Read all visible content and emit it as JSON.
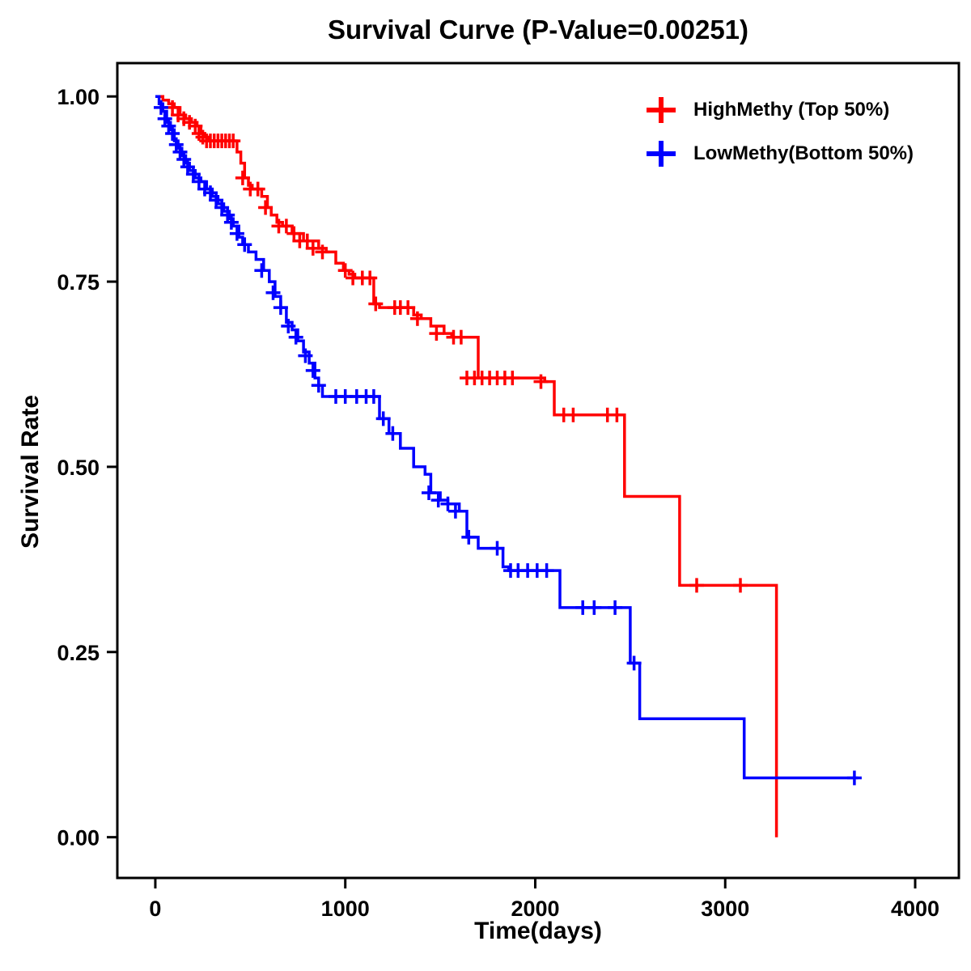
{
  "chart_data": {
    "type": "line",
    "subtype": "kaplan-meier-step",
    "title": "Survival Curve (P-Value=0.00251)",
    "p_value": "0.00251",
    "xlabel": "Time(days)",
    "ylabel": "Survival Rate",
    "xlim": [
      -200,
      4230
    ],
    "ylim": [
      -0.055,
      1.045
    ],
    "grid": false,
    "legend_position": "top-right",
    "axis_color": "#000000",
    "xticks": [
      {
        "v": 0,
        "label": "0"
      },
      {
        "v": 1000,
        "label": "1000"
      },
      {
        "v": 2000,
        "label": "2000"
      },
      {
        "v": 3000,
        "label": "3000"
      },
      {
        "v": 4000,
        "label": "4000"
      }
    ],
    "yticks": [
      {
        "v": 0.0,
        "label": "0.00"
      },
      {
        "v": 0.25,
        "label": "0.25"
      },
      {
        "v": 0.5,
        "label": "0.50"
      },
      {
        "v": 0.75,
        "label": "0.75"
      },
      {
        "v": 1.0,
        "label": "1.00"
      }
    ],
    "series": [
      {
        "name": "HighMethy (Top 50%)",
        "color": "#FF0000",
        "points": [
          [
            0,
            1.0
          ],
          [
            40,
            0.995
          ],
          [
            70,
            0.99
          ],
          [
            100,
            0.985
          ],
          [
            130,
            0.975
          ],
          [
            160,
            0.97
          ],
          [
            190,
            0.965
          ],
          [
            220,
            0.96
          ],
          [
            240,
            0.95
          ],
          [
            260,
            0.945
          ],
          [
            280,
            0.94
          ],
          [
            430,
            0.925
          ],
          [
            450,
            0.91
          ],
          [
            470,
            0.89
          ],
          [
            490,
            0.88
          ],
          [
            510,
            0.875
          ],
          [
            560,
            0.865
          ],
          [
            590,
            0.85
          ],
          [
            610,
            0.84
          ],
          [
            640,
            0.83
          ],
          [
            670,
            0.825
          ],
          [
            720,
            0.815
          ],
          [
            780,
            0.805
          ],
          [
            860,
            0.795
          ],
          [
            900,
            0.79
          ],
          [
            950,
            0.775
          ],
          [
            990,
            0.765
          ],
          [
            1020,
            0.76
          ],
          [
            1050,
            0.755
          ],
          [
            1150,
            0.72
          ],
          [
            1180,
            0.715
          ],
          [
            1360,
            0.705
          ],
          [
            1400,
            0.7
          ],
          [
            1450,
            0.69
          ],
          [
            1520,
            0.68
          ],
          [
            1560,
            0.675
          ],
          [
            1700,
            0.62
          ],
          [
            2050,
            0.615
          ],
          [
            2100,
            0.57
          ],
          [
            2470,
            0.46
          ],
          [
            2760,
            0.34
          ],
          [
            3270,
            0.0
          ]
        ],
        "censors": [
          [
            90,
            0.985
          ],
          [
            120,
            0.975
          ],
          [
            150,
            0.97
          ],
          [
            180,
            0.965
          ],
          [
            210,
            0.96
          ],
          [
            230,
            0.95
          ],
          [
            250,
            0.945
          ],
          [
            270,
            0.94
          ],
          [
            290,
            0.94
          ],
          [
            310,
            0.94
          ],
          [
            330,
            0.94
          ],
          [
            350,
            0.94
          ],
          [
            370,
            0.94
          ],
          [
            390,
            0.94
          ],
          [
            410,
            0.94
          ],
          [
            460,
            0.89
          ],
          [
            500,
            0.875
          ],
          [
            540,
            0.875
          ],
          [
            580,
            0.85
          ],
          [
            650,
            0.825
          ],
          [
            690,
            0.825
          ],
          [
            730,
            0.815
          ],
          [
            760,
            0.805
          ],
          [
            800,
            0.805
          ],
          [
            830,
            0.795
          ],
          [
            880,
            0.79
          ],
          [
            1000,
            0.765
          ],
          [
            1040,
            0.755
          ],
          [
            1090,
            0.755
          ],
          [
            1130,
            0.755
          ],
          [
            1160,
            0.72
          ],
          [
            1260,
            0.715
          ],
          [
            1290,
            0.715
          ],
          [
            1330,
            0.715
          ],
          [
            1380,
            0.7
          ],
          [
            1480,
            0.68
          ],
          [
            1570,
            0.675
          ],
          [
            1610,
            0.675
          ],
          [
            1640,
            0.62
          ],
          [
            1680,
            0.62
          ],
          [
            1720,
            0.62
          ],
          [
            1760,
            0.62
          ],
          [
            1800,
            0.62
          ],
          [
            1840,
            0.62
          ],
          [
            1880,
            0.62
          ],
          [
            2030,
            0.615
          ],
          [
            2150,
            0.57
          ],
          [
            2200,
            0.57
          ],
          [
            2380,
            0.57
          ],
          [
            2430,
            0.57
          ],
          [
            2850,
            0.34
          ],
          [
            3080,
            0.34
          ]
        ]
      },
      {
        "name": "LowMethy(Bottom 50%)",
        "color": "#0000FF",
        "points": [
          [
            0,
            1.0
          ],
          [
            20,
            0.99
          ],
          [
            40,
            0.98
          ],
          [
            60,
            0.965
          ],
          [
            80,
            0.955
          ],
          [
            100,
            0.94
          ],
          [
            120,
            0.93
          ],
          [
            140,
            0.92
          ],
          [
            160,
            0.91
          ],
          [
            180,
            0.9
          ],
          [
            210,
            0.89
          ],
          [
            240,
            0.885
          ],
          [
            270,
            0.875
          ],
          [
            300,
            0.865
          ],
          [
            330,
            0.855
          ],
          [
            360,
            0.845
          ],
          [
            390,
            0.835
          ],
          [
            410,
            0.825
          ],
          [
            440,
            0.81
          ],
          [
            460,
            0.8
          ],
          [
            490,
            0.79
          ],
          [
            530,
            0.78
          ],
          [
            570,
            0.765
          ],
          [
            600,
            0.75
          ],
          [
            630,
            0.73
          ],
          [
            660,
            0.715
          ],
          [
            690,
            0.695
          ],
          [
            720,
            0.685
          ],
          [
            750,
            0.67
          ],
          [
            780,
            0.655
          ],
          [
            810,
            0.64
          ],
          [
            840,
            0.62
          ],
          [
            860,
            0.61
          ],
          [
            880,
            0.595
          ],
          [
            1180,
            0.565
          ],
          [
            1230,
            0.545
          ],
          [
            1290,
            0.525
          ],
          [
            1360,
            0.5
          ],
          [
            1420,
            0.49
          ],
          [
            1450,
            0.465
          ],
          [
            1500,
            0.455
          ],
          [
            1540,
            0.45
          ],
          [
            1600,
            0.44
          ],
          [
            1640,
            0.405
          ],
          [
            1700,
            0.39
          ],
          [
            1830,
            0.365
          ],
          [
            1860,
            0.36
          ],
          [
            2130,
            0.31
          ],
          [
            2500,
            0.235
          ],
          [
            2550,
            0.16
          ],
          [
            3100,
            0.08
          ],
          [
            3700,
            0.08
          ]
        ],
        "censors": [
          [
            30,
            0.985
          ],
          [
            50,
            0.97
          ],
          [
            70,
            0.96
          ],
          [
            90,
            0.95
          ],
          [
            110,
            0.935
          ],
          [
            130,
            0.925
          ],
          [
            150,
            0.915
          ],
          [
            170,
            0.905
          ],
          [
            200,
            0.895
          ],
          [
            230,
            0.885
          ],
          [
            260,
            0.875
          ],
          [
            290,
            0.87
          ],
          [
            320,
            0.86
          ],
          [
            350,
            0.85
          ],
          [
            380,
            0.84
          ],
          [
            400,
            0.83
          ],
          [
            430,
            0.815
          ],
          [
            470,
            0.8
          ],
          [
            560,
            0.765
          ],
          [
            620,
            0.735
          ],
          [
            660,
            0.715
          ],
          [
            700,
            0.69
          ],
          [
            740,
            0.675
          ],
          [
            790,
            0.65
          ],
          [
            830,
            0.63
          ],
          [
            860,
            0.61
          ],
          [
            950,
            0.595
          ],
          [
            1000,
            0.595
          ],
          [
            1060,
            0.595
          ],
          [
            1110,
            0.595
          ],
          [
            1150,
            0.595
          ],
          [
            1200,
            0.565
          ],
          [
            1250,
            0.545
          ],
          [
            1440,
            0.465
          ],
          [
            1490,
            0.455
          ],
          [
            1540,
            0.45
          ],
          [
            1580,
            0.44
          ],
          [
            1650,
            0.405
          ],
          [
            1800,
            0.39
          ],
          [
            1870,
            0.36
          ],
          [
            1910,
            0.36
          ],
          [
            1960,
            0.36
          ],
          [
            2010,
            0.36
          ],
          [
            2060,
            0.36
          ],
          [
            2250,
            0.31
          ],
          [
            2310,
            0.31
          ],
          [
            2420,
            0.31
          ],
          [
            2520,
            0.235
          ],
          [
            3680,
            0.08
          ]
        ]
      }
    ]
  }
}
